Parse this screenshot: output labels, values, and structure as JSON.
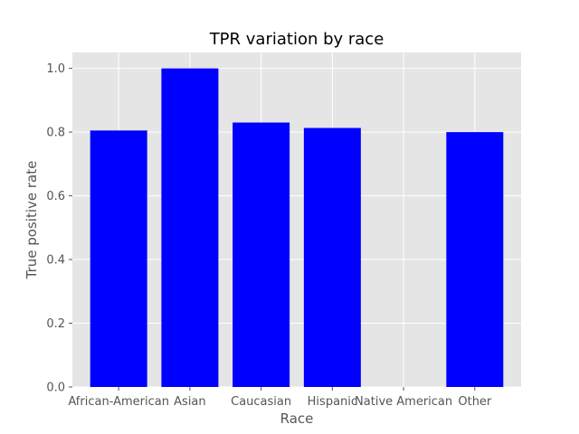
{
  "chart_data": {
    "type": "bar",
    "title": "TPR variation by race",
    "xlabel": "Race",
    "ylabel": "True positive rate",
    "categories": [
      "African-American",
      "Asian",
      "Caucasian",
      "Hispanic",
      "Native American",
      "Other"
    ],
    "values": [
      0.805,
      1.0,
      0.83,
      0.813,
      0.0,
      0.8
    ],
    "ylim": [
      0,
      1.05
    ],
    "yticks": [
      "0.0",
      "0.2",
      "0.4",
      "0.6",
      "0.8",
      "1.0"
    ],
    "grid": true,
    "colors": {
      "bar": "#0000ff",
      "plot_background": "#e5e5e5",
      "grid": "#ffffff",
      "tick_text": "#555555"
    }
  }
}
